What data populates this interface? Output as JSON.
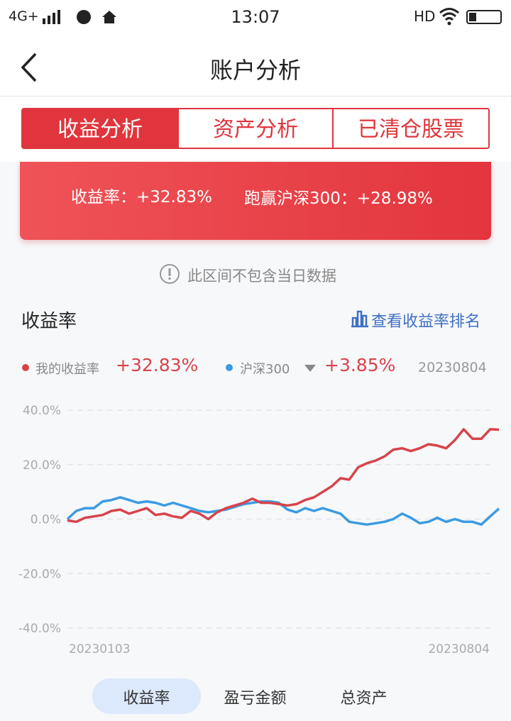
{
  "status_bar": {
    "network": "4G+",
    "time": "13:07",
    "hd": "HD"
  },
  "header": {
    "title": "账户分析"
  },
  "tabs": [
    "收益分析",
    "资产分析",
    "已清仓股票"
  ],
  "summary": {
    "return_label": "收益率：+32.83%",
    "beat_label": "跑赢沪深300：+28.98%"
  },
  "notice": "此区间不包含当日数据",
  "section": {
    "title": "收益率",
    "link": "查看收益率排名"
  },
  "chart_data": {
    "type": "line",
    "legend_labels": [
      "+32.83%",
      "+3.85%"
    ],
    "legend_date": "20230804",
    "categories": [
      "20230103",
      null,
      null,
      null,
      null,
      null,
      null,
      null,
      null,
      null,
      null,
      null,
      null,
      null,
      null,
      null,
      null,
      null,
      null,
      null,
      null,
      null,
      null,
      null,
      null,
      null,
      null,
      null,
      null,
      null,
      null,
      null,
      null,
      null,
      null,
      null,
      null,
      null,
      null,
      null,
      null,
      null,
      null,
      null,
      null,
      null,
      null,
      null,
      null,
      "20230804"
    ],
    "series": [
      {
        "name": "我的收益率",
        "color": "#d8434b",
        "values": [
          -0.5,
          -1,
          0.5,
          1,
          1.5,
          3,
          3.5,
          2,
          3,
          4,
          1.5,
          2,
          1,
          0.5,
          3,
          2,
          0,
          2.5,
          4,
          5,
          6,
          7.5,
          6,
          6,
          5.5,
          5,
          5.5,
          7,
          8,
          10,
          12,
          15,
          14.5,
          19,
          20.5,
          21.5,
          23,
          25.5,
          26,
          25,
          26,
          27.5,
          27,
          26,
          29,
          33,
          29.5,
          29.5,
          33,
          32.83
        ]
      },
      {
        "name": "沪深300",
        "color": "#3b9be2",
        "values": [
          0,
          3,
          4,
          4,
          6.5,
          7,
          8,
          7,
          6,
          6.5,
          6,
          5,
          6,
          5,
          4,
          3,
          2.5,
          3,
          3.5,
          4.5,
          5.5,
          6,
          6.5,
          6.5,
          6,
          3.5,
          2.5,
          4,
          3,
          4,
          3,
          2,
          -1,
          -1.5,
          -2,
          -1.5,
          -1,
          0,
          2,
          0.5,
          -1.5,
          -1,
          0.5,
          -1,
          0,
          -1,
          -1,
          -2,
          1,
          3.85
        ]
      }
    ],
    "ylim": [
      -40,
      40
    ],
    "yticks": [
      {
        "value": -40,
        "label": "-40.0%"
      },
      {
        "value": -20,
        "label": "-20.0%"
      },
      {
        "value": 0,
        "label": "0.0%"
      },
      {
        "value": 20,
        "label": "20.0%"
      },
      {
        "value": 40,
        "label": "40.0%"
      }
    ],
    "grid": true
  },
  "bottom_tabs": [
    "收益率",
    "盈亏金额",
    "总资产"
  ]
}
